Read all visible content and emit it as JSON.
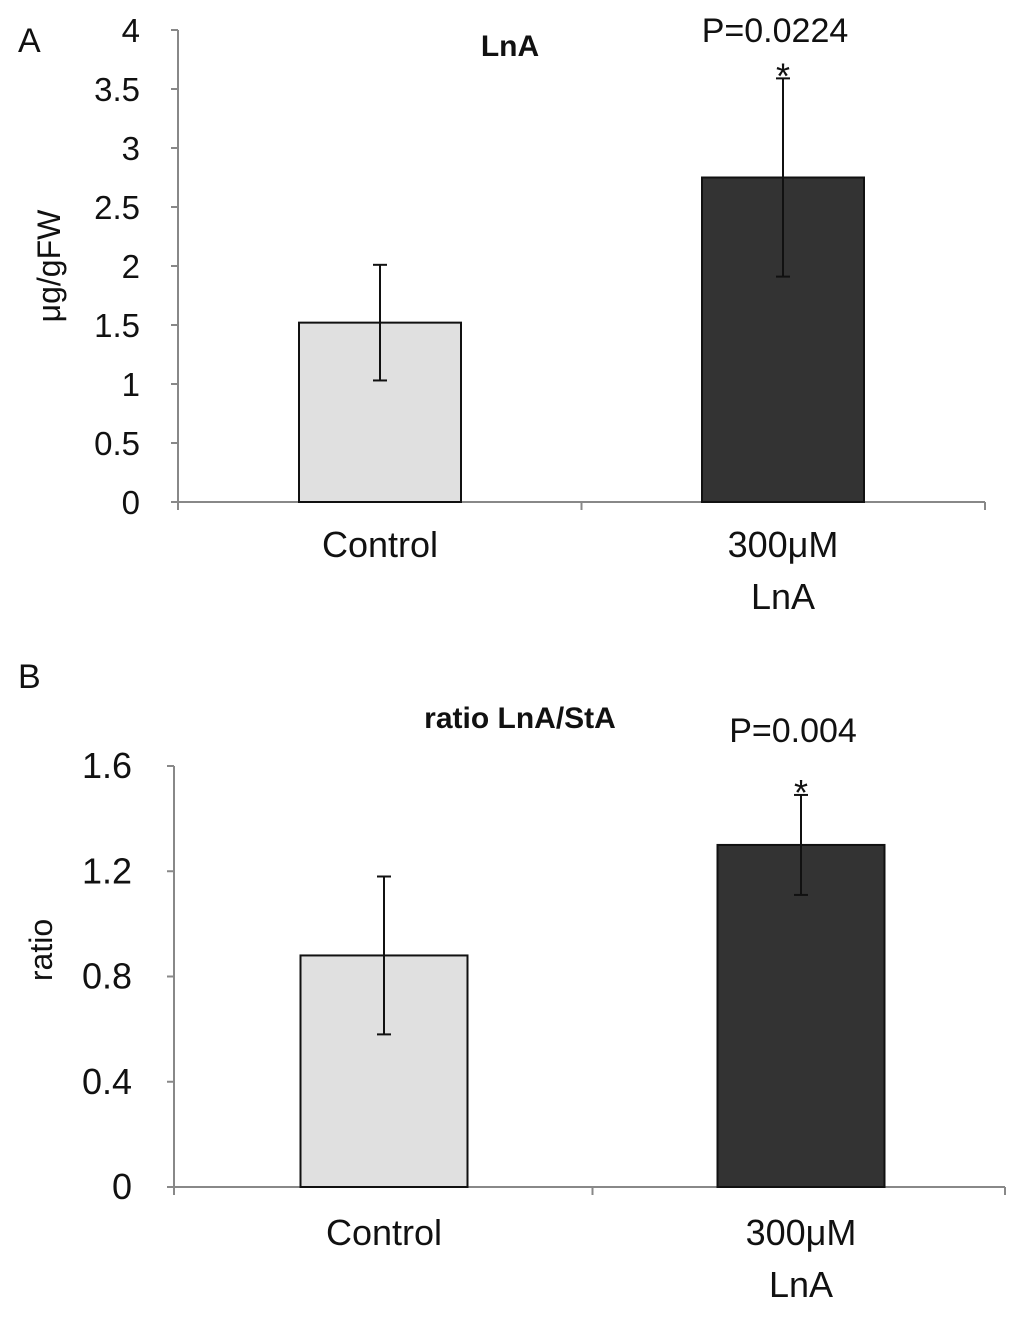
{
  "panels": {
    "a": {
      "letter": "A"
    },
    "b": {
      "letter": "B"
    }
  },
  "chart_data": [
    {
      "type": "bar",
      "title": "LnA",
      "categories": [
        "Control",
        "300μM LnA"
      ],
      "category_lines": [
        [
          "Control"
        ],
        [
          "300μM",
          "LnA"
        ]
      ],
      "values": [
        1.52,
        2.75
      ],
      "errors": [
        0.49,
        0.84
      ],
      "bar_colors": [
        "#e0e0e0",
        "#333333"
      ],
      "ylim": [
        0,
        4
      ],
      "yticks": [
        0,
        0.5,
        1,
        1.5,
        2,
        2.5,
        3,
        3.5,
        4
      ],
      "ytick_labels": [
        "0",
        "0.5",
        "1",
        "1.5",
        "2",
        "2.5",
        "3",
        "3.5",
        "4"
      ],
      "xlabel": "",
      "ylabel": "μg/gFW",
      "annotations": [
        {
          "category_index": 1,
          "p_value": "P=0.0224",
          "marker": "*"
        }
      ]
    },
    {
      "type": "bar",
      "title": "ratio LnA/StA",
      "categories": [
        "Control",
        "300μM LnA"
      ],
      "category_lines": [
        [
          "Control"
        ],
        [
          "300μM",
          "LnA"
        ]
      ],
      "values": [
        0.88,
        1.3
      ],
      "errors": [
        0.3,
        0.19
      ],
      "bar_colors": [
        "#e0e0e0",
        "#333333"
      ],
      "ylim": [
        0,
        1.6
      ],
      "yticks": [
        0,
        0.4,
        0.8,
        1.2,
        1.6
      ],
      "ytick_labels": [
        "0",
        "0.4",
        "0.8",
        "1.2",
        "1.6"
      ],
      "xlabel": "",
      "ylabel": "ratio",
      "annotations": [
        {
          "category_index": 1,
          "p_value": "P=0.004",
          "marker": "*"
        }
      ]
    }
  ]
}
